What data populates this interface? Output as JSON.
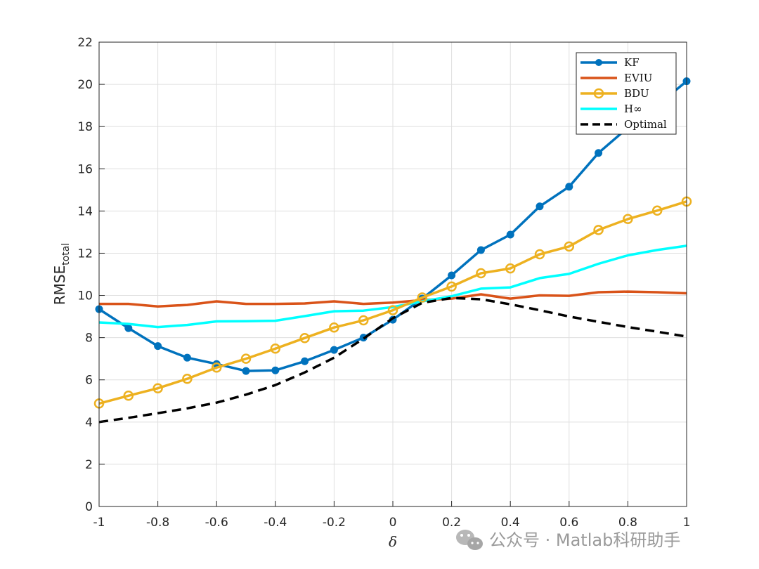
{
  "chart_data": {
    "type": "line",
    "xlabel": "δ",
    "ylabel": "RMSE",
    "ylabel_sub": "total",
    "xlim": [
      -1,
      1
    ],
    "ylim": [
      0,
      22
    ],
    "grid": true,
    "legend_position": "top-right",
    "x_ticks": [
      -1,
      -0.8,
      -0.6,
      -0.4,
      -0.2,
      0,
      0.2,
      0.4,
      0.6,
      0.8,
      1
    ],
    "x_tick_labels": [
      "-1",
      "-0.8",
      "-0.6",
      "-0.4",
      "-0.2",
      "0",
      "0.2",
      "0.4",
      "0.6",
      "0.8",
      "1"
    ],
    "y_ticks": [
      0,
      2,
      4,
      6,
      8,
      10,
      12,
      14,
      16,
      18,
      20,
      22
    ],
    "y_tick_labels": [
      "0",
      "2",
      "4",
      "6",
      "8",
      "10",
      "12",
      "14",
      "16",
      "18",
      "20",
      "22"
    ],
    "x": [
      -1,
      -0.9,
      -0.8,
      -0.7,
      -0.6,
      -0.5,
      -0.4,
      -0.3,
      -0.2,
      -0.1,
      0,
      0.1,
      0.2,
      0.3,
      0.4,
      0.5,
      0.6,
      0.7,
      0.8,
      0.9,
      1
    ],
    "series": [
      {
        "name": "KF",
        "color": "#0072BD",
        "marker": "filled-circle",
        "dash": "solid",
        "values": [
          9.35,
          8.45,
          7.6,
          7.05,
          6.75,
          6.42,
          6.45,
          6.88,
          7.42,
          8.0,
          8.85,
          9.85,
          10.95,
          12.15,
          12.88,
          14.22,
          15.15,
          16.75,
          17.95,
          19.0,
          20.15
        ]
      },
      {
        "name": "EVIU",
        "color": "#D95319",
        "marker": "none",
        "dash": "solid",
        "values": [
          9.6,
          9.6,
          9.48,
          9.55,
          9.72,
          9.6,
          9.6,
          9.62,
          9.72,
          9.6,
          9.66,
          9.78,
          9.85,
          10.05,
          9.85,
          10.0,
          9.98,
          10.15,
          10.18,
          10.15,
          10.1
        ]
      },
      {
        "name": "BDU",
        "color": "#EDB120",
        "marker": "open-circle",
        "dash": "solid",
        "values": [
          4.88,
          5.25,
          5.6,
          6.05,
          6.58,
          7.0,
          7.48,
          7.98,
          8.48,
          8.82,
          9.3,
          9.9,
          10.42,
          11.05,
          11.28,
          11.95,
          12.32,
          13.1,
          13.62,
          14.02,
          14.45
        ]
      },
      {
        "name": "H∞",
        "color": "#00FFFF",
        "marker": "none",
        "dash": "solid",
        "values": [
          8.72,
          8.65,
          8.5,
          8.6,
          8.77,
          8.78,
          8.8,
          9.02,
          9.25,
          9.28,
          9.45,
          9.72,
          9.96,
          10.32,
          10.38,
          10.82,
          11.02,
          11.5,
          11.9,
          12.15,
          12.35
        ]
      },
      {
        "name": "Optimal",
        "color": "#000000",
        "marker": "none",
        "dash": "dashed",
        "values": [
          4.0,
          4.2,
          4.42,
          4.65,
          4.92,
          5.3,
          5.75,
          6.35,
          7.05,
          7.95,
          8.92,
          9.65,
          9.88,
          9.82,
          9.58,
          9.3,
          9.0,
          8.75,
          8.5,
          8.28,
          8.05
        ]
      }
    ]
  },
  "watermark": {
    "icon": "wechat-icon",
    "text": "公众号 · Matlab科研助手"
  }
}
